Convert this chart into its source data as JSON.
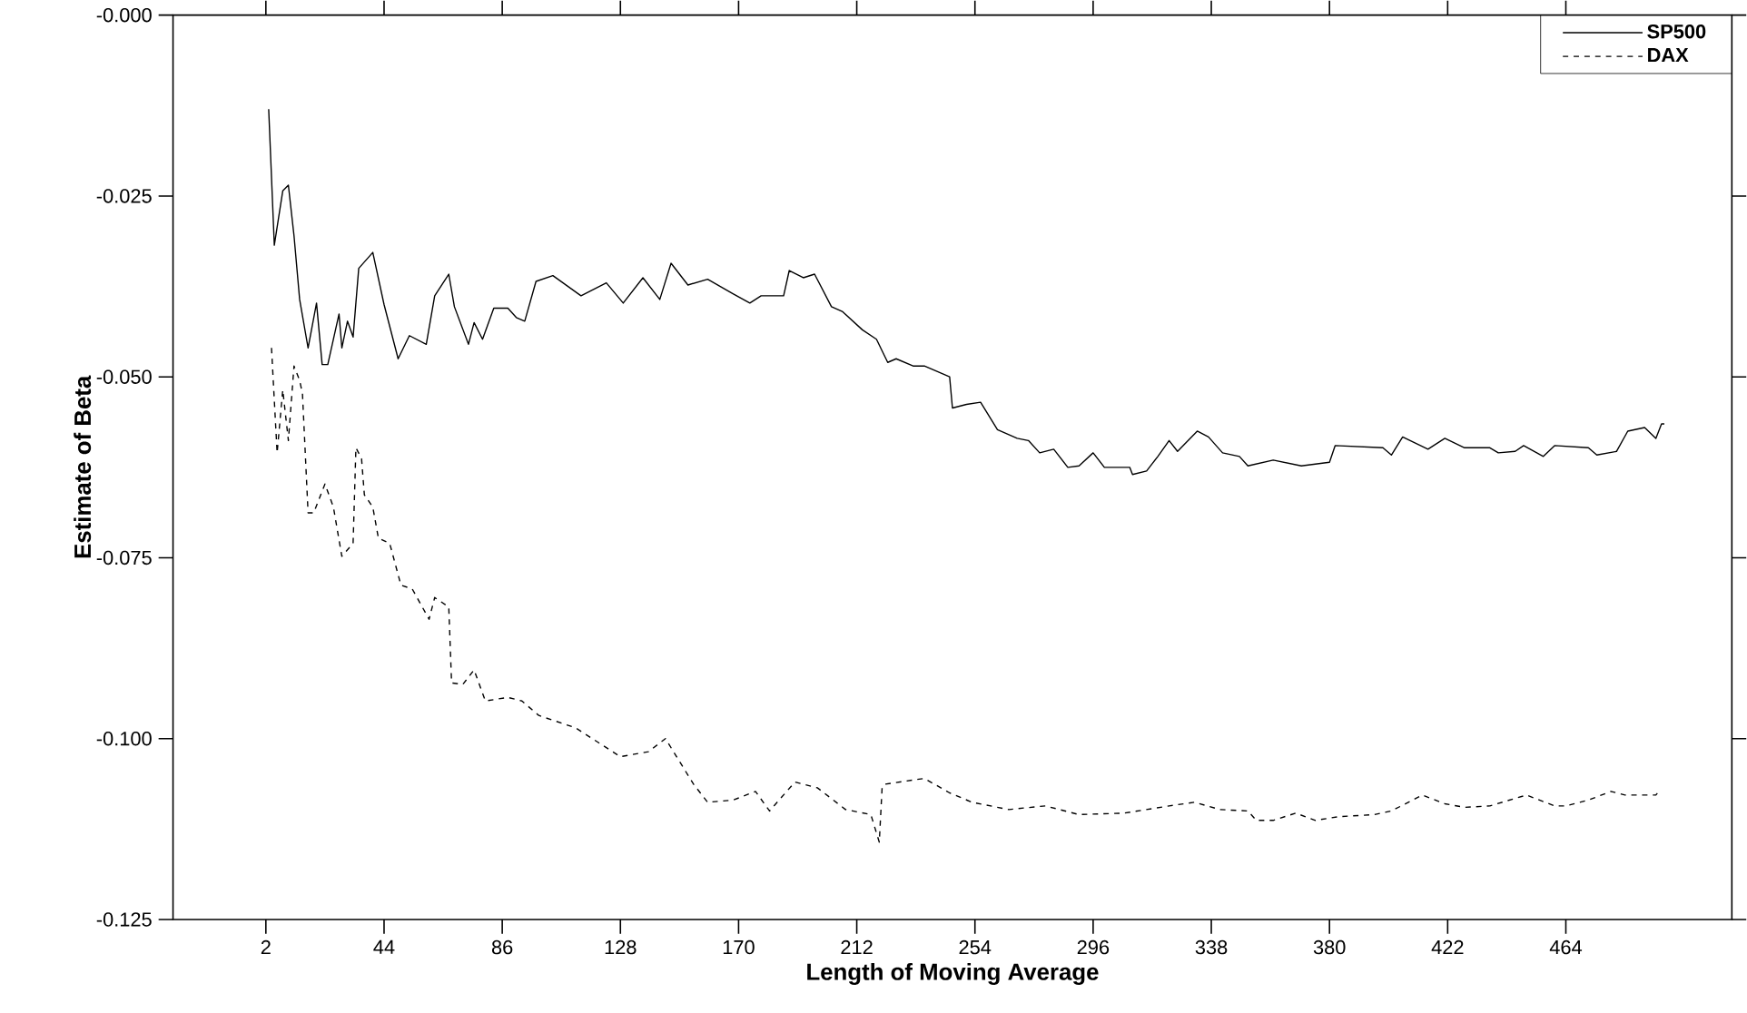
{
  "chart_data": {
    "type": "line",
    "xlabel": "Length of Moving Average",
    "ylabel": "Estimate of Beta",
    "xlim": [
      -31,
      523
    ],
    "ylim": [
      -0.125,
      0
    ],
    "xticks": [
      2,
      44,
      86,
      128,
      170,
      212,
      254,
      296,
      338,
      380,
      422,
      464
    ],
    "yticks": [
      {
        "value": -0.125,
        "label": "-0.125"
      },
      {
        "value": -0.1,
        "label": "-0.100"
      },
      {
        "value": -0.075,
        "label": "-0.075"
      },
      {
        "value": -0.05,
        "label": "-0.050"
      },
      {
        "value": -0.025,
        "label": "-0.025"
      },
      {
        "value": 0,
        "label": "-0.000"
      }
    ],
    "grid": false,
    "legend": "top right",
    "marker": "none",
    "series": [
      {
        "name": "SP500",
        "color": "#000000",
        "line_style": "solid",
        "x": [
          3,
          5,
          8,
          10,
          12,
          14,
          17,
          20,
          22,
          24,
          28,
          29,
          31,
          33,
          35,
          40,
          44,
          49,
          53,
          59,
          62,
          67,
          69,
          74,
          76,
          79,
          83,
          88,
          91,
          94,
          98,
          104,
          114,
          123,
          129,
          136,
          142,
          146,
          152,
          159,
          168,
          174,
          178,
          186,
          188,
          193,
          197,
          203,
          207,
          214,
          219,
          223,
          226,
          232,
          236,
          245,
          246,
          251,
          256,
          262,
          269,
          273,
          277,
          282,
          287,
          291,
          296,
          300,
          309,
          310,
          315,
          319,
          323,
          326,
          333,
          337,
          342,
          348,
          351,
          360,
          370,
          380,
          382,
          399,
          402,
          406,
          415,
          421,
          428,
          437,
          440,
          446,
          449,
          456,
          460,
          472,
          475,
          482,
          486,
          492,
          496,
          498,
          499
        ],
        "values": [
          -0.013,
          -0.0318,
          -0.0243,
          -0.0235,
          -0.0305,
          -0.0393,
          -0.046,
          -0.0398,
          -0.0483,
          -0.0483,
          -0.0413,
          -0.046,
          -0.0423,
          -0.0445,
          -0.035,
          -0.0328,
          -0.04,
          -0.0475,
          -0.0443,
          -0.0455,
          -0.0388,
          -0.0358,
          -0.0403,
          -0.0455,
          -0.0425,
          -0.0448,
          -0.0405,
          -0.0405,
          -0.0418,
          -0.0423,
          -0.0368,
          -0.036,
          -0.0388,
          -0.037,
          -0.0398,
          -0.0363,
          -0.0393,
          -0.0343,
          -0.0373,
          -0.0365,
          -0.0385,
          -0.0398,
          -0.0388,
          -0.0388,
          -0.0353,
          -0.0363,
          -0.0358,
          -0.0403,
          -0.041,
          -0.0435,
          -0.0448,
          -0.048,
          -0.0475,
          -0.0485,
          -0.0485,
          -0.05,
          -0.0543,
          -0.0538,
          -0.0535,
          -0.0573,
          -0.0585,
          -0.0588,
          -0.0605,
          -0.06,
          -0.0625,
          -0.0623,
          -0.0605,
          -0.0625,
          -0.0625,
          -0.0635,
          -0.063,
          -0.061,
          -0.0588,
          -0.0603,
          -0.0575,
          -0.0583,
          -0.0605,
          -0.061,
          -0.0623,
          -0.0615,
          -0.0623,
          -0.0618,
          -0.0595,
          -0.0598,
          -0.0608,
          -0.0583,
          -0.06,
          -0.0585,
          -0.0598,
          -0.0598,
          -0.0605,
          -0.0603,
          -0.0595,
          -0.061,
          -0.0595,
          -0.0598,
          -0.0608,
          -0.0603,
          -0.0575,
          -0.057,
          -0.0585,
          -0.0565,
          -0.0565
        ]
      },
      {
        "name": "DAX",
        "color": "#000000",
        "line_style": "dashed",
        "x": [
          4,
          6,
          8,
          10,
          12,
          14,
          15,
          17,
          19,
          23,
          26,
          29,
          33,
          34,
          36,
          37,
          40,
          42,
          46,
          50,
          54,
          60,
          62,
          67,
          68,
          72,
          76,
          80,
          88,
          93,
          99,
          112,
          128,
          138,
          144,
          154,
          159,
          168,
          176,
          181,
          190,
          198,
          208,
          217,
          220,
          221,
          222,
          236,
          245,
          253,
          266,
          279,
          291,
          307,
          323,
          332,
          341,
          351,
          354,
          360,
          368,
          375,
          383,
          396,
          402,
          413,
          421,
          428,
          437,
          450,
          460,
          464,
          472,
          480,
          485,
          496,
          497
        ],
        "values": [
          -0.046,
          -0.0605,
          -0.0518,
          -0.0588,
          -0.0485,
          -0.0505,
          -0.0523,
          -0.0688,
          -0.0688,
          -0.0648,
          -0.068,
          -0.0748,
          -0.073,
          -0.0598,
          -0.0613,
          -0.0663,
          -0.068,
          -0.0723,
          -0.073,
          -0.0788,
          -0.0793,
          -0.0835,
          -0.0805,
          -0.0818,
          -0.0923,
          -0.0925,
          -0.0905,
          -0.0948,
          -0.0943,
          -0.0948,
          -0.0968,
          -0.0985,
          -0.1025,
          -0.1018,
          -0.1,
          -0.1063,
          -0.1088,
          -0.1085,
          -0.1073,
          -0.11,
          -0.106,
          -0.1068,
          -0.1098,
          -0.1105,
          -0.1143,
          -0.1068,
          -0.1063,
          -0.1055,
          -0.1075,
          -0.1088,
          -0.1098,
          -0.1093,
          -0.1105,
          -0.1103,
          -0.1093,
          -0.1088,
          -0.1098,
          -0.11,
          -0.1113,
          -0.1113,
          -0.1103,
          -0.1113,
          -0.1108,
          -0.1105,
          -0.11,
          -0.1078,
          -0.109,
          -0.1095,
          -0.1093,
          -0.1078,
          -0.1093,
          -0.1093,
          -0.1085,
          -0.1073,
          -0.1078,
          -0.1078,
          -0.1073
        ]
      }
    ]
  }
}
